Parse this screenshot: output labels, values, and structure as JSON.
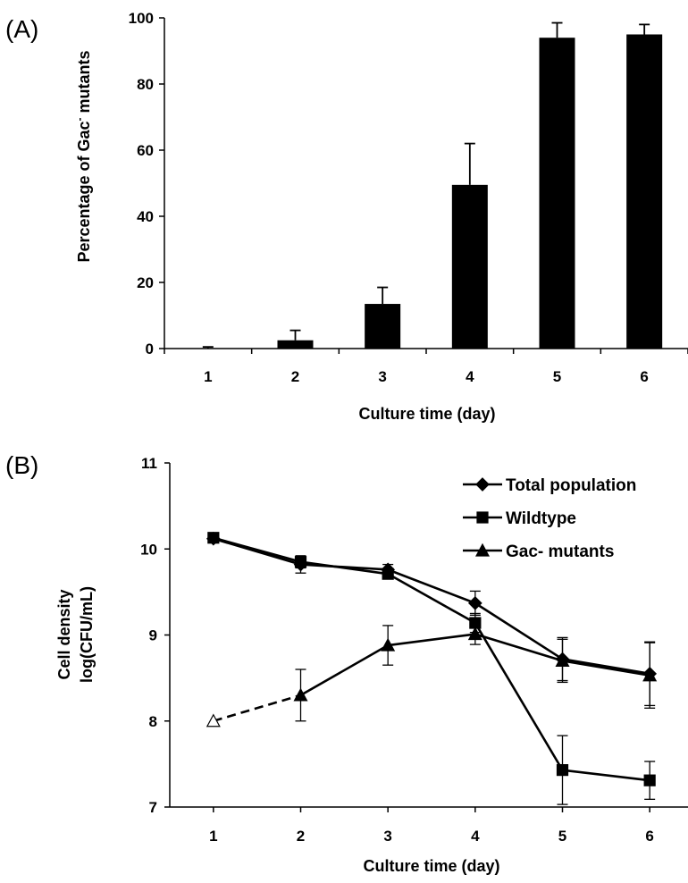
{
  "chart_data": [
    {
      "panel_label": "(A)",
      "type": "bar",
      "categories": [
        "1",
        "2",
        "3",
        "4",
        "5",
        "6"
      ],
      "values": [
        0,
        2.5,
        13.5,
        49.5,
        94,
        95
      ],
      "error": [
        0.5,
        3,
        5,
        12.5,
        4.5,
        3
      ],
      "xlabel": "Culture time (day)",
      "ylabel_main": "Percentage of Gac",
      "ylabel_sup": "-",
      "ylabel_end": " mutants",
      "ylim": [
        0,
        100
      ],
      "yticks": [
        0,
        20,
        40,
        60,
        80,
        100
      ],
      "bar_color": "#000000"
    },
    {
      "panel_label": "(B)",
      "type": "line",
      "x": [
        1,
        2,
        3,
        4,
        5,
        6
      ],
      "xlabel": "Culture time (day)",
      "ylabel_line1": "Cell density",
      "ylabel_line2": "log(CFU/mL)",
      "ylim": [
        7,
        11
      ],
      "yticks": [
        7,
        8,
        9,
        10,
        11
      ],
      "legend_position": "top-right",
      "series": [
        {
          "name": "Total population",
          "marker": "diamond",
          "values": [
            10.12,
            9.82,
            9.76,
            9.37,
            8.72,
            8.55
          ],
          "error": [
            0.03,
            0.1,
            0.06,
            0.14,
            0.25,
            0.37
          ]
        },
        {
          "name": "Wildtype",
          "marker": "square",
          "values": [
            10.13,
            9.85,
            9.71,
            9.14,
            7.43,
            7.31
          ],
          "error": [
            0.03,
            0.07,
            0.04,
            0.11,
            0.4,
            0.22
          ]
        },
        {
          "name": "Gac- mutants",
          "marker": "triangle",
          "values": [
            8.0,
            8.3,
            8.88,
            9.01,
            8.7,
            8.53
          ],
          "error": [
            0,
            0.3,
            0.23,
            0.12,
            0.25,
            0.38
          ],
          "first_point_open": true,
          "first_segment_dashed": true
        }
      ]
    }
  ]
}
